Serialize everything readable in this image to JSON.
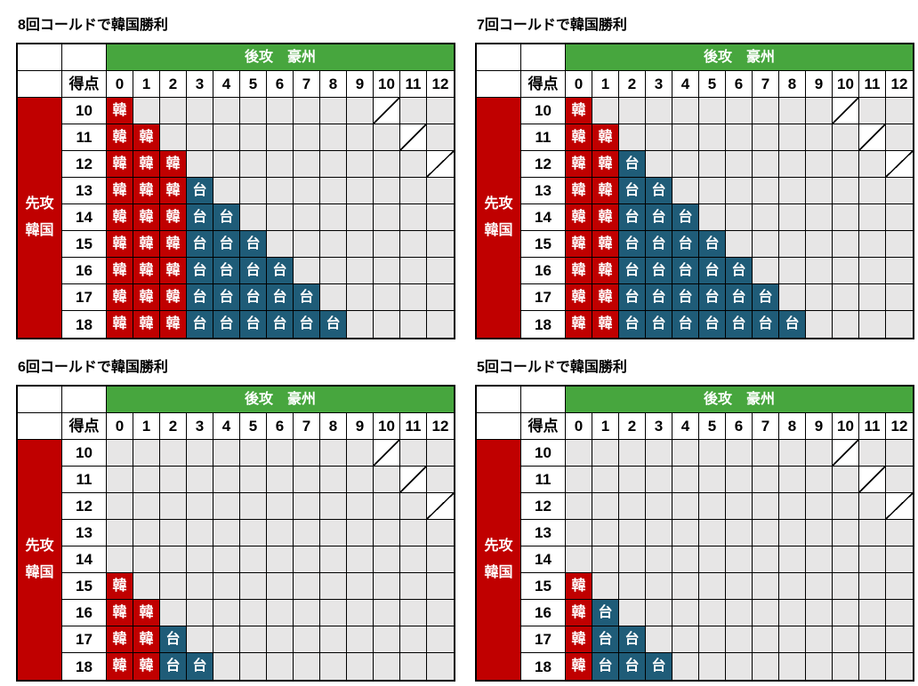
{
  "colors": {
    "korea_red": "#C00000",
    "opponent_blue": "#1F5C78",
    "header_green": "#47A63E",
    "empty_gray": "#E7E6E6",
    "grid_border": "#000000",
    "mark_text": "#FFFFFF",
    "label_text": "#000000"
  },
  "chart_data": {
    "type": "heatmap",
    "x_title": "後攻　豪州",
    "score_label": "得点",
    "y_title_line1": "先攻",
    "y_title_line2": "韓国",
    "korea_mark": "韓",
    "opponent_mark": "台",
    "x": [
      0,
      1,
      2,
      3,
      4,
      5,
      6,
      7,
      8,
      9,
      10,
      11,
      12
    ],
    "y": [
      10,
      11,
      12,
      13,
      14,
      15,
      16,
      17,
      18
    ],
    "diagonal_cells": [
      [
        10,
        10
      ],
      [
        11,
        11
      ],
      [
        12,
        12
      ]
    ],
    "tables": [
      {
        "title": "8回コールドで韓国勝利",
        "rows": [
          {
            "score": 10,
            "kan": 1,
            "tai": 0
          },
          {
            "score": 11,
            "kan": 2,
            "tai": 0
          },
          {
            "score": 12,
            "kan": 3,
            "tai": 0
          },
          {
            "score": 13,
            "kan": 3,
            "tai": 1
          },
          {
            "score": 14,
            "kan": 3,
            "tai": 2
          },
          {
            "score": 15,
            "kan": 3,
            "tai": 3
          },
          {
            "score": 16,
            "kan": 3,
            "tai": 4
          },
          {
            "score": 17,
            "kan": 3,
            "tai": 5
          },
          {
            "score": 18,
            "kan": 3,
            "tai": 6
          }
        ]
      },
      {
        "title": "7回コールドで韓国勝利",
        "rows": [
          {
            "score": 10,
            "kan": 1,
            "tai": 0
          },
          {
            "score": 11,
            "kan": 2,
            "tai": 0
          },
          {
            "score": 12,
            "kan": 2,
            "tai": 1
          },
          {
            "score": 13,
            "kan": 2,
            "tai": 2
          },
          {
            "score": 14,
            "kan": 2,
            "tai": 3
          },
          {
            "score": 15,
            "kan": 2,
            "tai": 4
          },
          {
            "score": 16,
            "kan": 2,
            "tai": 5
          },
          {
            "score": 17,
            "kan": 2,
            "tai": 6
          },
          {
            "score": 18,
            "kan": 2,
            "tai": 7
          }
        ]
      },
      {
        "title": "6回コールドで韓国勝利",
        "rows": [
          {
            "score": 10,
            "kan": 0,
            "tai": 0
          },
          {
            "score": 11,
            "kan": 0,
            "tai": 0
          },
          {
            "score": 12,
            "kan": 0,
            "tai": 0
          },
          {
            "score": 13,
            "kan": 0,
            "tai": 0
          },
          {
            "score": 14,
            "kan": 0,
            "tai": 0
          },
          {
            "score": 15,
            "kan": 1,
            "tai": 0
          },
          {
            "score": 16,
            "kan": 2,
            "tai": 0
          },
          {
            "score": 17,
            "kan": 2,
            "tai": 1
          },
          {
            "score": 18,
            "kan": 2,
            "tai": 2
          }
        ]
      },
      {
        "title": "5回コールドで韓国勝利",
        "rows": [
          {
            "score": 10,
            "kan": 0,
            "tai": 0
          },
          {
            "score": 11,
            "kan": 0,
            "tai": 0
          },
          {
            "score": 12,
            "kan": 0,
            "tai": 0
          },
          {
            "score": 13,
            "kan": 0,
            "tai": 0
          },
          {
            "score": 14,
            "kan": 0,
            "tai": 0
          },
          {
            "score": 15,
            "kan": 1,
            "tai": 0
          },
          {
            "score": 16,
            "kan": 1,
            "tai": 1
          },
          {
            "score": 17,
            "kan": 1,
            "tai": 2
          },
          {
            "score": 18,
            "kan": 1,
            "tai": 3
          }
        ]
      }
    ]
  }
}
